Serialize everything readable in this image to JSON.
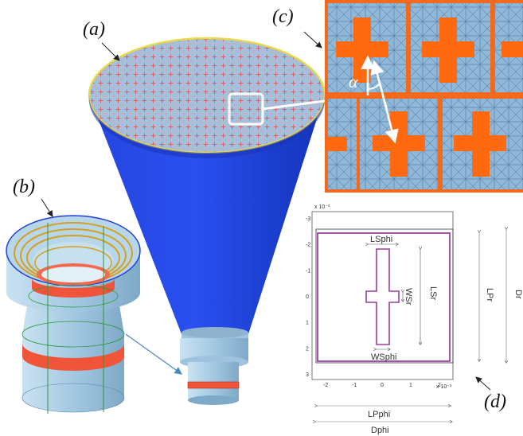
{
  "panel_labels": {
    "a": "(a)",
    "b": "(b)",
    "c": "(c)",
    "d": "(d)"
  },
  "symbols": {
    "alpha": "α"
  },
  "plot": {
    "exponent_y": "x 10⁻³",
    "exponent_x": "x 10⁻³",
    "y_ticks": [
      "-3",
      "-2",
      "-1",
      "0",
      "1",
      "2",
      "3"
    ],
    "x_ticks": [
      "-2",
      "-1",
      "0",
      "1",
      "2"
    ],
    "labels": {
      "lsphi": "LSphi",
      "lsr": "LSr",
      "wsr": "WSr",
      "wsphi": "WSphi",
      "lpr": "LPr",
      "dr": "Dr",
      "lpphi": "LPphi",
      "dphi": "Dphi"
    }
  },
  "colors": {
    "horn_blue": "#1f3fd1",
    "horn_blue_dark": "#0d2aa0",
    "feed_light": "#a9cde6",
    "ring_red": "#f0553a",
    "mesh_bg": "#7ea6c9",
    "cross_orange": "#ff6a10",
    "unit_cell_purple": "#9b3fa0",
    "rim_yellow": "#e8d94a"
  }
}
